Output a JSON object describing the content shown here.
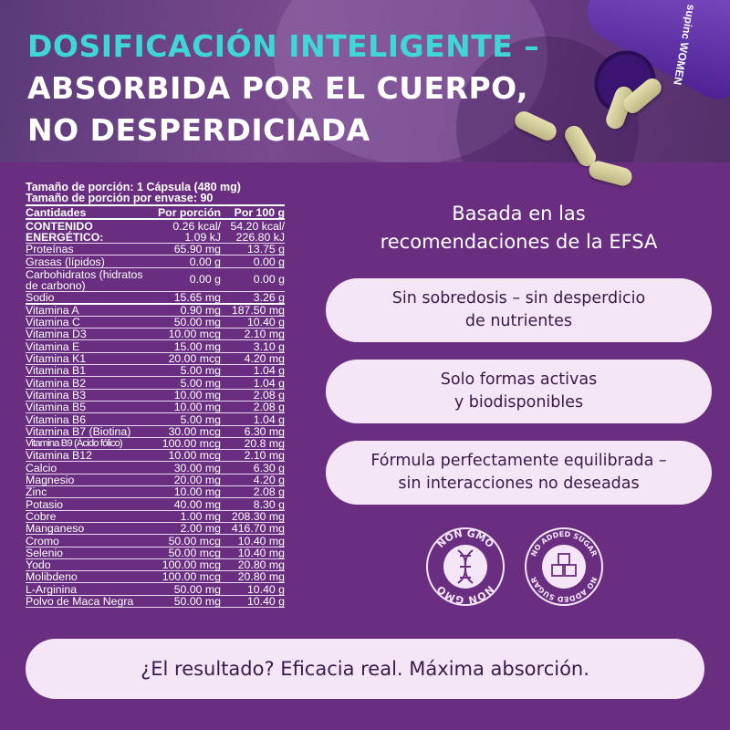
{
  "header": {
    "title_line1": "DOSIFICACIÓN INTELIGENTE –",
    "title_line2": "ABSORBIDA POR EL CUERPO,",
    "title_line3": "NO DESPERDICIADA",
    "bottle_brand": "supinc WOMEN"
  },
  "nutrition": {
    "serving_size": "Tamaño de porción:  1 Cápsula (480 mg)",
    "servings_per_container": "Tamaño de porción por envase: 90",
    "columns": [
      "Cantidades",
      "Por porción",
      "Por 100 g"
    ],
    "energy": {
      "name": "CONTENIDO ENERGÉTICO:",
      "per_serving": "0.26 kcal/ 1.09 kJ",
      "per_100g": "54.20 kcal/ 226.80 kJ"
    },
    "rows": [
      [
        "Proteínas",
        "65.90 mg",
        "13.75 g"
      ],
      [
        "Grasas (lípidos)",
        "0.00 g",
        "0.00 g"
      ],
      [
        "Carbohidratos (hidratos de carbono)",
        "0.00 g",
        "0.00 g"
      ],
      [
        "Sodio",
        "15.65 mg",
        "3.26 g"
      ],
      [
        "Vitamina A",
        "0.90 mg",
        "187.50 mg"
      ],
      [
        "Vitamina C",
        "50.00 mg",
        "10.40 g"
      ],
      [
        "Vitamina D3",
        "10.00 mcg",
        "2.10 mg"
      ],
      [
        "Vitamina E",
        "15.00 mg",
        "3.10 g"
      ],
      [
        "Vitamina K1",
        "20.00 mcg",
        "4.20 mg"
      ],
      [
        "Vitamina B1",
        "5.00 mg",
        "1.04 g"
      ],
      [
        "Vitamina B2",
        "5.00 mg",
        "1.04 g"
      ],
      [
        "Vitamina B3",
        "10.00 mg",
        "2.08 g"
      ],
      [
        "Vitamina B5",
        "10.00 mg",
        "2.08 g"
      ],
      [
        "Vitamina B6",
        "5.00 mg",
        "1.04 g"
      ],
      [
        "Vitamina B7 (Biotina)",
        "30.00 mcg",
        "6.30 mg"
      ],
      [
        "Vitamina B9 (Ácido fólico)",
        "100.00 mcg",
        "20.8 mg"
      ],
      [
        "Vitamina B12",
        "10.00 mcg",
        "2.10 mg"
      ],
      [
        "Calcio",
        "30.00 mg",
        "6.30 g"
      ],
      [
        "Magnesio",
        "20.00 mg",
        "4.20 g"
      ],
      [
        "Zinc",
        "10.00 mg",
        "2.08 g"
      ],
      [
        "Potasio",
        "40.00 mg",
        "8.30 g"
      ],
      [
        "Cobre",
        "1.00 mg",
        "208.30 mg"
      ],
      [
        "Manganeso",
        "2.00 mg",
        "416.70 mg"
      ],
      [
        "Cromo",
        "50.00 mcg",
        "10.40 mg"
      ],
      [
        "Selenio",
        "50.00 mcg",
        "10.40 mg"
      ],
      [
        "Yodo",
        "100.00 mcg",
        "20.80 mg"
      ],
      [
        "Molibdeno",
        "100.00 mcg",
        "20.80 mg"
      ],
      [
        "L-Arginina",
        "50.00 mg",
        "10.40 g"
      ],
      [
        "Polvo de Maca Negra",
        "50.00 mg",
        "10.40 g"
      ]
    ]
  },
  "benefits": {
    "intro_line1": "Basada en las",
    "intro_line2": "recomendaciones de la EFSA",
    "cards": [
      [
        "Sin sobredosis – sin desperdicio",
        "de nutrientes"
      ],
      [
        "Solo formas activas",
        "y biodisponibles"
      ],
      [
        "Fórmula perfectamente equilibrada –",
        "sin interacciones no deseadas"
      ]
    ]
  },
  "badges": [
    {
      "text": "NON GMO",
      "icon": "dna-icon"
    },
    {
      "text": "NO ADDED SUGAR",
      "icon": "sugar-cubes-icon"
    }
  ],
  "result": "¿El resultado? Eficacia real. Máxima absorción.",
  "colors": {
    "background": "#6a2e80",
    "accent": "#3fd6d8",
    "card": "#f4e6f7",
    "card_text": "#3a1a48"
  }
}
